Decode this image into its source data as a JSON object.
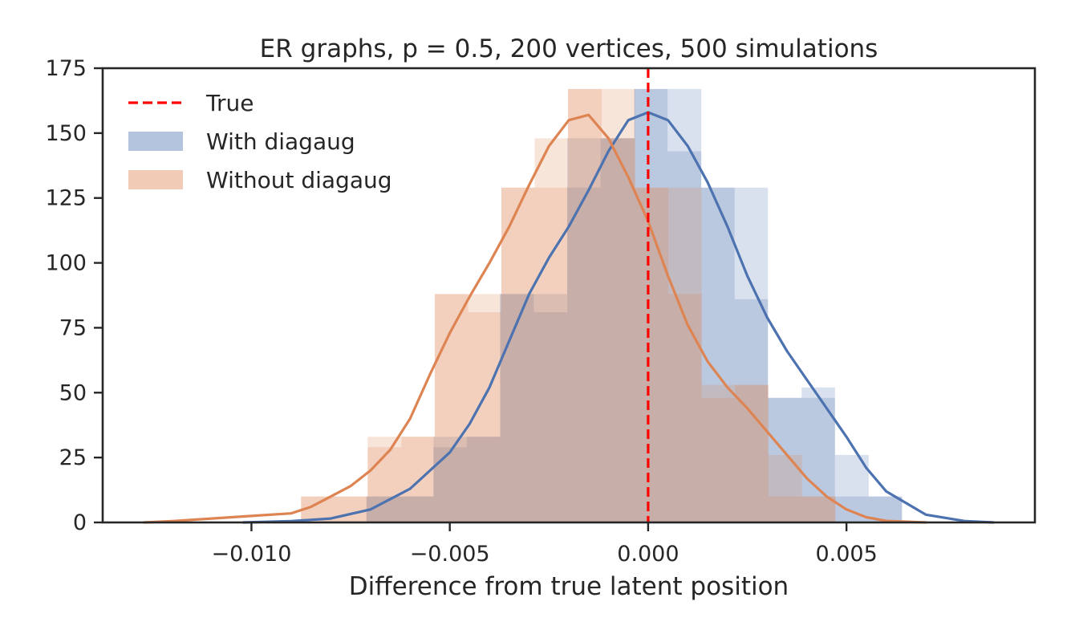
{
  "chart_data": {
    "type": "histogram",
    "title": "ER graphs, p = 0.5, 200 vertices, 500 simulations",
    "xlabel": "Difference from true latent position",
    "ylabel": "",
    "xlim": [
      -0.01375,
      0.00975
    ],
    "ylim": [
      0,
      175
    ],
    "x_ticks": [
      -0.01,
      -0.005,
      0.0,
      0.005
    ],
    "x_tick_labels": [
      "−0.010",
      "−0.005",
      "0.000",
      "0.005"
    ],
    "y_ticks": [
      0,
      25,
      50,
      75,
      100,
      125,
      150,
      175
    ],
    "y_tick_labels": [
      "0",
      "25",
      "50",
      "75",
      "100",
      "125",
      "150",
      "175"
    ],
    "grid": false,
    "legend_position": "top-left",
    "true_line": {
      "name": "True",
      "x": 0.0,
      "color": "#ff0000",
      "style": "dashed"
    },
    "series": [
      {
        "name": "With diagaug",
        "bar_color": "#4c72b0",
        "kde_color": "#4c72b0",
        "bin_edges": [
          -0.0071,
          -0.00541,
          -0.00373,
          -0.00204,
          -0.00035,
          0.00134,
          0.00302,
          0.00471,
          0.0064
        ],
        "values": [
          10,
          33,
          88,
          148,
          167,
          129,
          48,
          10
        ],
        "sub_bin_edges": [
          -0.0071,
          -0.00626,
          -0.00541,
          -0.00457,
          -0.00373,
          -0.00288,
          -0.00204,
          -0.0012,
          -0.00035,
          0.00049,
          0.00134,
          0.00218,
          0.00302,
          0.00387,
          0.00471,
          0.00556,
          0.0064
        ],
        "sub_values": [
          10,
          10,
          29,
          33,
          88,
          81,
          129,
          148,
          167,
          143,
          129,
          86,
          48,
          52,
          26,
          10
        ],
        "kde": {
          "x": [
            -0.0102,
            -0.009,
            -0.008,
            -0.007,
            -0.006,
            -0.005,
            -0.0045,
            -0.004,
            -0.0035,
            -0.003,
            -0.0025,
            -0.002,
            -0.0015,
            -0.001,
            -0.0005,
            0.0,
            0.0005,
            0.001,
            0.0015,
            0.002,
            0.0025,
            0.003,
            0.0035,
            0.004,
            0.0045,
            0.005,
            0.0055,
            0.006,
            0.007,
            0.008,
            0.0087
          ],
          "y": [
            0,
            0.5,
            1.5,
            5,
            13,
            27,
            38,
            52,
            70,
            88,
            102,
            114,
            128,
            143,
            155,
            158,
            155,
            145,
            131,
            114,
            95,
            79,
            66,
            55,
            44,
            33,
            21,
            12,
            3,
            0.5,
            0
          ]
        }
      },
      {
        "name": "Without diagaug",
        "bar_color": "#dd8452",
        "kde_color": "#dd8452",
        "bin_edges": [
          -0.00875,
          -0.00707,
          -0.00538,
          -0.0037,
          -0.00202,
          -0.00033,
          0.00135,
          0.00303,
          0.00472
        ],
        "values": [
          10,
          33,
          88,
          129,
          167,
          129,
          53,
          10
        ],
        "sub_bin_edges": [
          -0.00875,
          -0.00791,
          -0.00707,
          -0.00622,
          -0.00538,
          -0.00454,
          -0.0037,
          -0.00286,
          -0.00202,
          -0.00117,
          -0.00033,
          0.00051,
          0.00135,
          0.00219,
          0.00303,
          0.00388,
          0.00472
        ],
        "sub_values": [
          10,
          10,
          29,
          33,
          88,
          81,
          129,
          148,
          167,
          148,
          129,
          88,
          48,
          53,
          26,
          10
        ],
        "kde": {
          "x": [
            -0.0127,
            -0.012,
            -0.011,
            -0.01,
            -0.009,
            -0.0085,
            -0.008,
            -0.0075,
            -0.007,
            -0.0065,
            -0.006,
            -0.0055,
            -0.005,
            -0.0045,
            -0.004,
            -0.0035,
            -0.003,
            -0.0025,
            -0.002,
            -0.0015,
            -0.001,
            -0.0005,
            0.0,
            0.0005,
            0.001,
            0.0015,
            0.002,
            0.0025,
            0.003,
            0.0035,
            0.004,
            0.0045,
            0.005,
            0.0055,
            0.006,
            0.007
          ],
          "y": [
            0,
            0.5,
            1.5,
            2.5,
            3.5,
            6,
            10,
            14,
            20,
            28,
            40,
            57,
            73,
            87,
            100,
            114,
            130,
            145,
            155,
            157,
            148,
            133,
            116,
            95,
            76,
            62,
            52,
            44,
            35,
            26,
            17,
            10,
            5,
            2,
            0.6,
            0
          ]
        }
      }
    ]
  }
}
